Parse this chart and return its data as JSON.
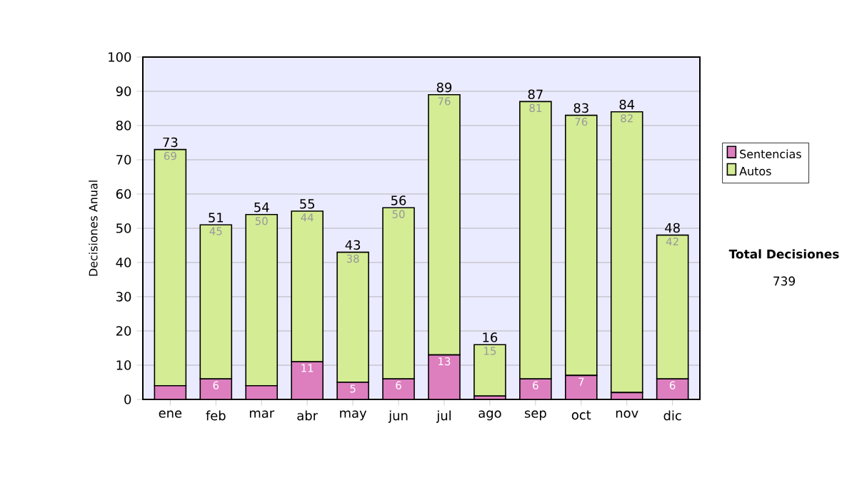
{
  "chart_data": {
    "type": "bar",
    "stacked": true,
    "ylabel": "Decisiones Anual",
    "categories": [
      "ene",
      "feb",
      "mar",
      "abr",
      "may",
      "jun",
      "jul",
      "ago",
      "sep",
      "oct",
      "nov",
      "dic"
    ],
    "series": [
      {
        "name": "Sentencias",
        "color": "#dd7ebf",
        "values": [
          4,
          6,
          4,
          11,
          5,
          6,
          13,
          1,
          6,
          7,
          2,
          6
        ],
        "value_labels": [
          null,
          "6",
          null,
          "11",
          "5",
          "6",
          "13",
          null,
          "6",
          "7",
          null,
          "6"
        ]
      },
      {
        "name": "Autos",
        "color": "#d4ec94",
        "values": [
          69,
          45,
          50,
          44,
          38,
          50,
          76,
          15,
          81,
          76,
          82,
          42
        ],
        "value_labels": [
          "69",
          "45",
          "50",
          "44",
          "38",
          "50",
          "76",
          "15",
          "81",
          "76",
          "82",
          "42"
        ]
      }
    ],
    "totals": [
      "73",
      "51",
      "54",
      "55",
      "43",
      "56",
      "89",
      "16",
      "87",
      "83",
      "84",
      "48"
    ],
    "ylim": [
      0,
      100
    ],
    "yticks": [
      0,
      10,
      20,
      30,
      40,
      50,
      60,
      70,
      80,
      90,
      100
    ],
    "grid": "y",
    "legend": "right",
    "annotations": [
      "Total Decisiones",
      "739"
    ]
  }
}
